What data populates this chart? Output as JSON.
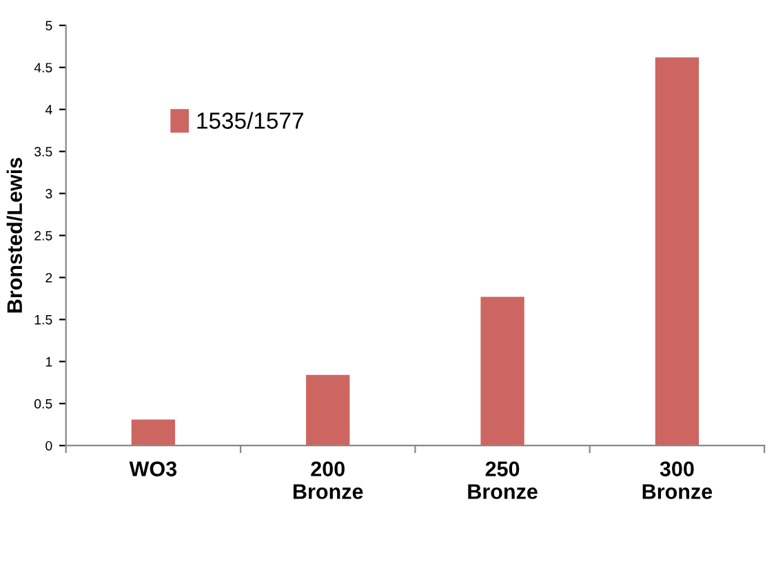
{
  "chart_data": {
    "type": "bar",
    "ylabel": "Bronsted/Lewis",
    "categories": [
      "WO3",
      "200\nBronze",
      "250\nBronze",
      "300\nBronze"
    ],
    "series": [
      {
        "name": "1535/1577",
        "color": "#cd6661",
        "values": [
          0.31,
          0.84,
          1.77,
          4.62
        ]
      }
    ],
    "ylim": [
      0,
      5
    ],
    "yticks": [
      0,
      0.5,
      1,
      1.5,
      2,
      2.5,
      3,
      3.5,
      4,
      4.5,
      5
    ],
    "grid": false,
    "legend": "top left"
  }
}
